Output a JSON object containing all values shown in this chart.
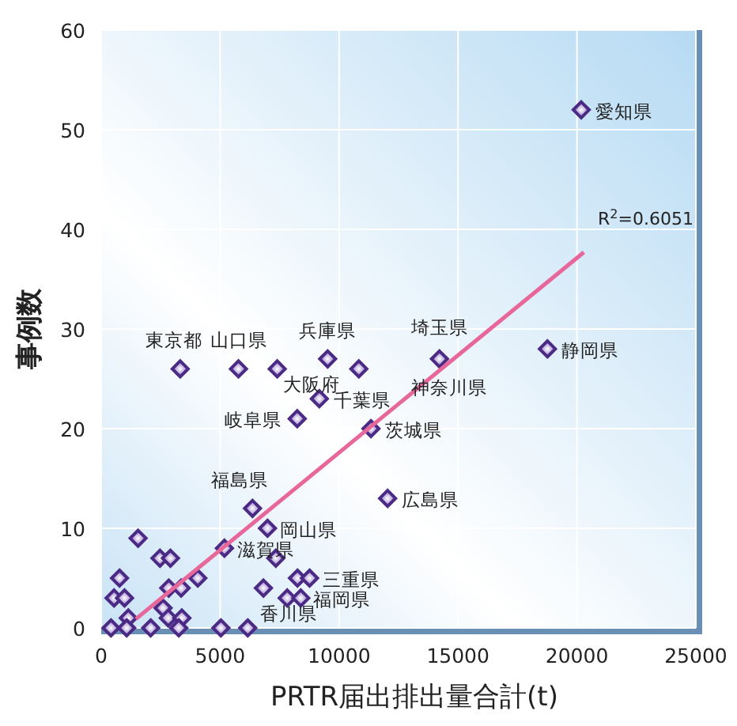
{
  "chart_data": {
    "type": "scatter",
    "xlabel": "PRTR届出排出量合計(t)",
    "ylabel": "事例数",
    "xlim": [
      0,
      25000
    ],
    "ylim": [
      0,
      60
    ],
    "xticks": [
      0,
      5000,
      10000,
      15000,
      20000,
      25000
    ],
    "yticks": [
      0,
      10,
      20,
      30,
      40,
      50,
      60
    ],
    "grid": true,
    "series": [
      {
        "marker": "diamond",
        "color": "#4b2a86",
        "x": [
          3320,
          5770,
          7400,
          9520,
          10830,
          14220,
          9170,
          8240,
          11340,
          12040,
          6360,
          6990,
          1550,
          5180,
          7340,
          2470,
          2910,
          770,
          4060,
          8250,
          8760,
          2840,
          3360,
          6820,
          540,
          980,
          7820,
          8390,
          2600,
          1140,
          2820,
          3390,
          410,
          1070,
          2080,
          3260,
          5030,
          6160,
          18760,
          20180
        ],
        "values": [
          26,
          26,
          26,
          27,
          26,
          27,
          23,
          21,
          20,
          13,
          12,
          10,
          9,
          8,
          7,
          7,
          7,
          5,
          5,
          5,
          5,
          4,
          4,
          4,
          3,
          3,
          3,
          3,
          2,
          1,
          1,
          1,
          0,
          0,
          0,
          0,
          0,
          0,
          28,
          52
        ]
      },
      {
        "type": "line",
        "color": "#e8679a",
        "x": [
          1460,
          20290
        ],
        "values": [
          0.9,
          37.7
        ]
      }
    ],
    "annotations": [
      {
        "text": "東京都",
        "x": 3320,
        "y": 26
      },
      {
        "text": "山口県",
        "x": 5770,
        "y": 26
      },
      {
        "text": "兵庫県",
        "x": 9520,
        "y": 27
      },
      {
        "text": "大阪府",
        "x": 10830,
        "y": 26
      },
      {
        "text": "埼玉県",
        "x": 14220,
        "y": 27
      },
      {
        "text": "神奈川県",
        "x": 14220,
        "y": 27
      },
      {
        "text": "千葉県",
        "x": 9170,
        "y": 23
      },
      {
        "text": "岐阜県",
        "x": 8240,
        "y": 21
      },
      {
        "text": "茨城県",
        "x": 11340,
        "y": 20
      },
      {
        "text": "広島県",
        "x": 12040,
        "y": 13
      },
      {
        "text": "福島県",
        "x": 6360,
        "y": 12
      },
      {
        "text": "岡山県",
        "x": 6990,
        "y": 10
      },
      {
        "text": "滋賀県",
        "x": 5180,
        "y": 8
      },
      {
        "text": "三重県",
        "x": 8760,
        "y": 5
      },
      {
        "text": "福岡県",
        "x": 8390,
        "y": 3
      },
      {
        "text": "香川県",
        "x": 6160,
        "y": 0
      },
      {
        "text": "静岡県",
        "x": 18760,
        "y": 28
      },
      {
        "text": "愛知県",
        "x": 20180,
        "y": 52
      },
      "R$^{2}$=0.6051"
    ]
  }
}
